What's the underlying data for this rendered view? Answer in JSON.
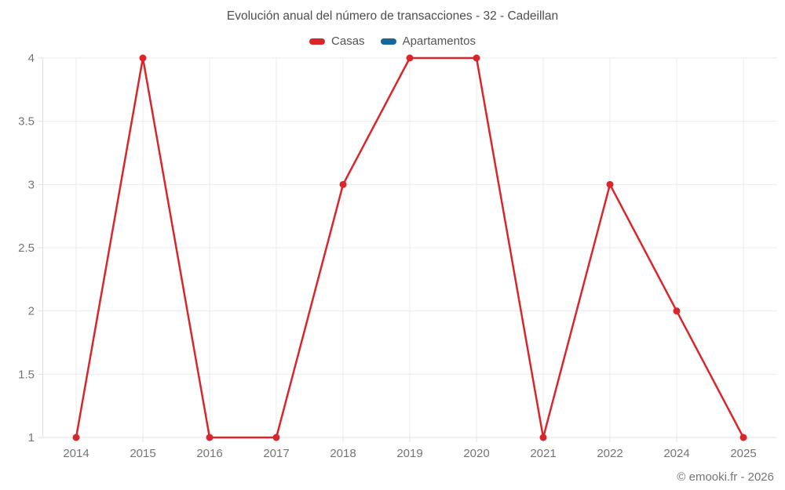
{
  "title": "Evolución anual del número de transacciones - 32 - Cadeillan",
  "copyright": "© emooki.fr - 2026",
  "chart_data": {
    "type": "line",
    "title": "Evolución anual del número de transacciones - 32 - Cadeillan",
    "categories": [
      "2014",
      "2015",
      "2016",
      "2017",
      "2018",
      "2019",
      "2020",
      "2021",
      "2022",
      "2024",
      "2025"
    ],
    "series": [
      {
        "name": "Casas",
        "color": "#d8262c",
        "values": [
          1,
          4,
          1,
          1,
          3,
          4,
          4,
          1,
          3,
          2,
          1
        ]
      },
      {
        "name": "Apartamentos",
        "color": "#17689a",
        "values": []
      }
    ],
    "xlabel": "",
    "ylabel": "",
    "ylim": [
      1,
      4
    ],
    "yticks": [
      4,
      3.5,
      3,
      2.5,
      2,
      1.5,
      1
    ],
    "grid": true,
    "legend_position": "top",
    "colors": {
      "grid_line": "#ebebeb",
      "axis_line": "#e0e0e0",
      "tick_label": "#757575",
      "title_text": "#4e4e4e",
      "legend_text": "#555555"
    }
  }
}
